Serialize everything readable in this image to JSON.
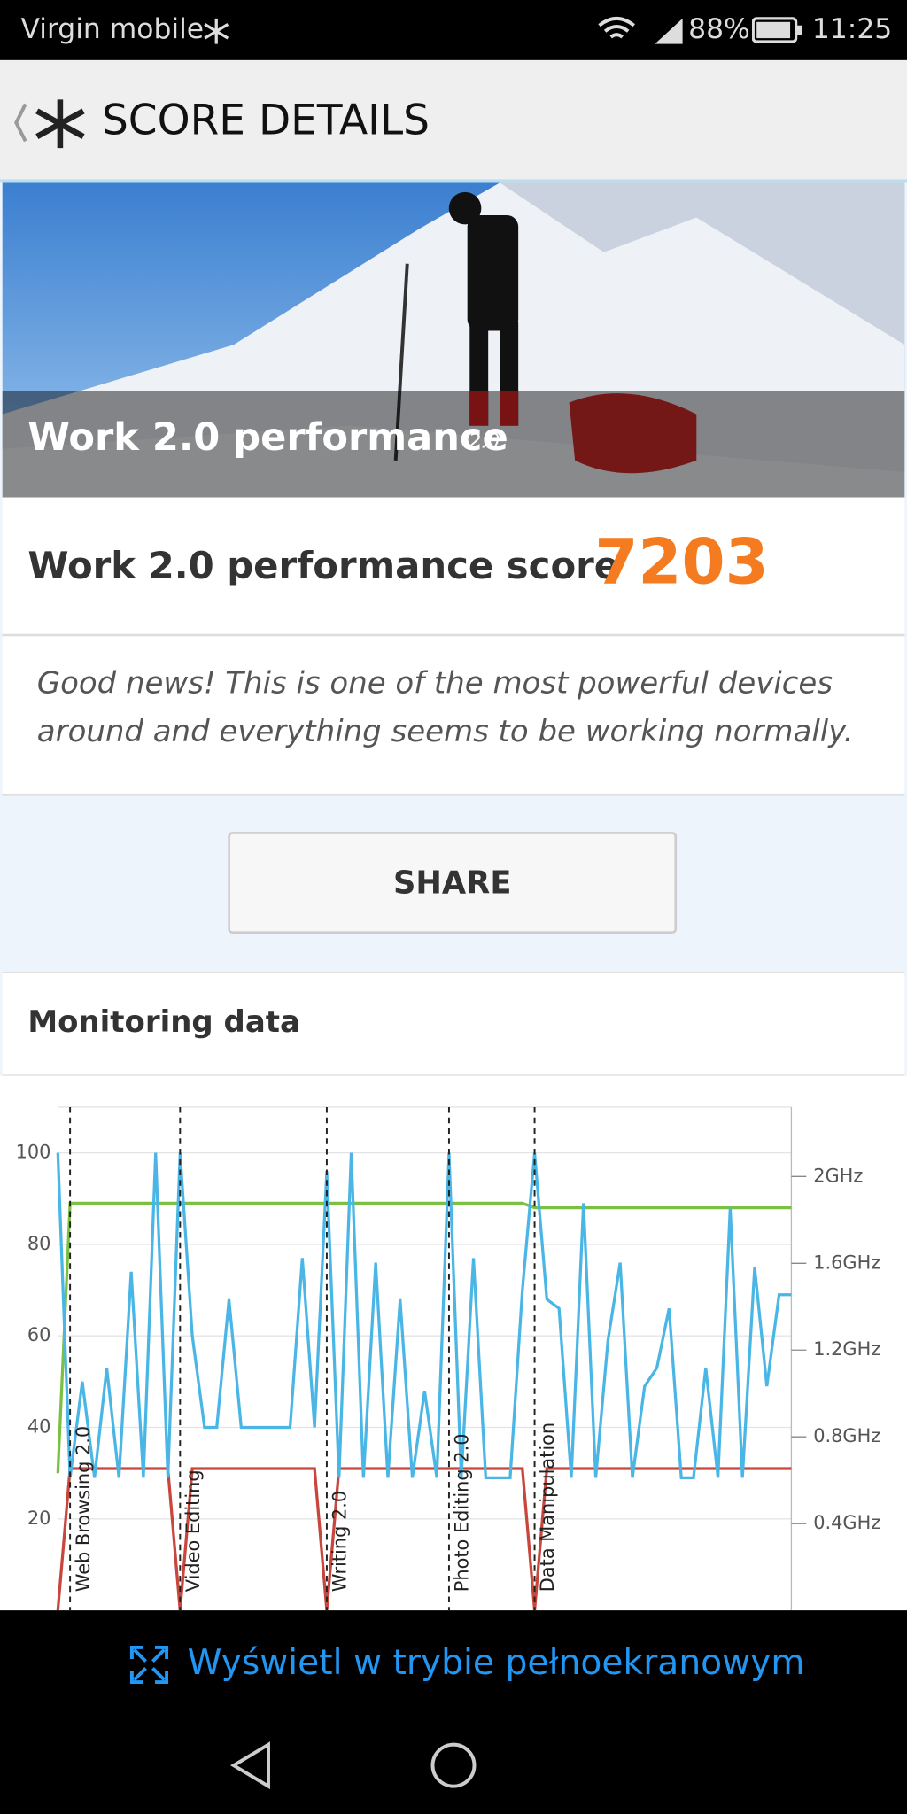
{
  "status_bar": {
    "carrier": "Virgin mobile",
    "battery": "88%",
    "time": "11:25"
  },
  "header": {
    "title": "SCORE DETAILS"
  },
  "banner": {
    "title": "Work 2.0 performance",
    "version": "2.0"
  },
  "score": {
    "label": "Work 2.0 performance score",
    "value": 7203
  },
  "message": "Good news! This is one of the most powerful devices around and everything seems to be working normally.",
  "share_button": "SHARE",
  "monitoring": {
    "title": "Monitoring data"
  },
  "chart_data": {
    "type": "line",
    "ylim": [
      0,
      110
    ],
    "yticks": [
      20,
      40,
      60,
      80,
      100
    ],
    "y2lim": [
      0,
      2.32
    ],
    "y2ticks": [
      {
        "value": 0.4,
        "label": "0.4GHz"
      },
      {
        "value": 0.8,
        "label": "0.8GHz"
      },
      {
        "value": 1.2,
        "label": "1.2GHz"
      },
      {
        "value": 1.6,
        "label": "1.6GHz"
      },
      {
        "value": 2,
        "label": "2GHz"
      }
    ],
    "grid": true,
    "markers": [
      {
        "label": "Web Browsing 2.0",
        "index": 1
      },
      {
        "label": "Video Editing",
        "index": 10
      },
      {
        "label": "Writing 2.0",
        "index": 22
      },
      {
        "label": "Photo Editing 2.0",
        "index": 32
      },
      {
        "label": "Data Manipulation",
        "index": 39
      }
    ],
    "series": [
      {
        "color": "#7cc043",
        "values": [
          30,
          89,
          89,
          89,
          89,
          89,
          89,
          89,
          89,
          89,
          89,
          89,
          89,
          89,
          89,
          89,
          89,
          89,
          89,
          89,
          89,
          89,
          89,
          89,
          89,
          89,
          89,
          89,
          89,
          89,
          89,
          89,
          89,
          89,
          89,
          89,
          89,
          89,
          89,
          88,
          88,
          88,
          88,
          88,
          88,
          88,
          88,
          88,
          88,
          88,
          88,
          88,
          88,
          88,
          88,
          88,
          88,
          88,
          88,
          88,
          88
        ]
      },
      {
        "color": "#c8463c",
        "values": [
          0,
          31,
          31,
          31,
          31,
          31,
          31,
          31,
          31,
          31,
          0,
          31,
          31,
          31,
          31,
          31,
          31,
          31,
          31,
          31,
          31,
          31,
          0,
          31,
          31,
          31,
          31,
          31,
          31,
          31,
          31,
          31,
          31,
          31,
          31,
          31,
          31,
          31,
          31,
          0,
          31,
          31,
          31,
          31,
          31,
          31,
          31,
          31,
          31,
          31,
          31,
          31,
          31,
          31,
          31,
          31,
          31,
          31,
          31,
          31,
          31
        ]
      },
      {
        "color": "#4ab6e6",
        "values": [
          100,
          29,
          50,
          29,
          53,
          29,
          74,
          29,
          100,
          29,
          100,
          60,
          40,
          40,
          68,
          40,
          40,
          40,
          40,
          40,
          77,
          40,
          96,
          29,
          100,
          29,
          76,
          29,
          68,
          29,
          48,
          29,
          100,
          29,
          77,
          29,
          29,
          29,
          70,
          100,
          68,
          66,
          29,
          89,
          29,
          59,
          76,
          29,
          49,
          53,
          66,
          29,
          29,
          53,
          29,
          88,
          29,
          75,
          49,
          69,
          69
        ]
      }
    ]
  },
  "footer": {
    "fullscreen": "Wyświetl w trybie pełnoekranowym"
  }
}
